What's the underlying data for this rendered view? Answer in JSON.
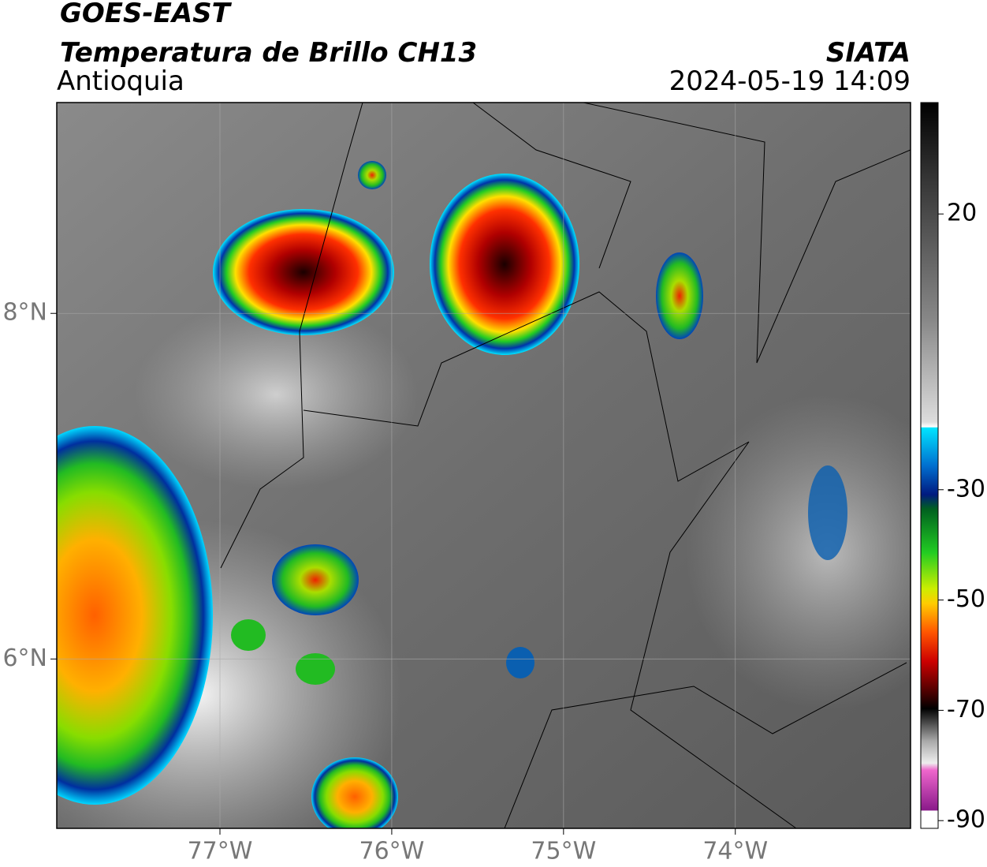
{
  "header": {
    "title": "GOES-EAST",
    "product": "Temperatura de Brillo CH13",
    "region": "Antioquia",
    "source": "SIATA",
    "datetime": "2024-05-19 14:09"
  },
  "map": {
    "xlim": [
      -77.95,
      -72.98
    ],
    "ylim": [
      5.02,
      9.22
    ],
    "xticks": [
      {
        "value": -77,
        "label": "77°W"
      },
      {
        "value": -76,
        "label": "76°W"
      },
      {
        "value": -75,
        "label": "75°W"
      },
      {
        "value": -74,
        "label": "74°W"
      }
    ],
    "yticks": [
      {
        "value": 8,
        "label": "8°N"
      },
      {
        "value": 6,
        "label": "6°N"
      }
    ],
    "grid": true
  },
  "colorbar": {
    "lim": [
      -91.4,
      40.2
    ],
    "ticks": [
      20,
      -30,
      -50,
      -70,
      -90
    ]
  }
}
